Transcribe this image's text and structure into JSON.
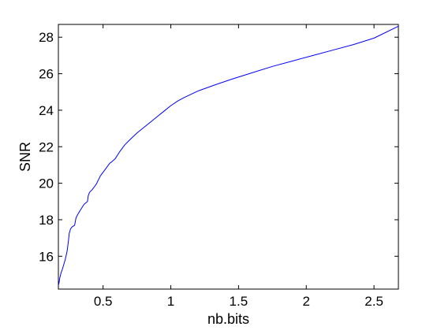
{
  "chart_data": {
    "type": "line",
    "title": "",
    "xlabel": "nb.bits",
    "ylabel": "SNR",
    "xlim": [
      0.17,
      2.68
    ],
    "ylim": [
      14.2,
      28.7
    ],
    "grid": false,
    "legend": "none",
    "xticks": [
      0.5,
      1,
      1.5,
      2,
      2.5
    ],
    "xtick_labels": [
      "0.5",
      "1",
      "1.5",
      "2",
      "2.5"
    ],
    "yticks": [
      16,
      18,
      20,
      22,
      24,
      26,
      28
    ],
    "ytick_labels": [
      "16",
      "18",
      "20",
      "22",
      "24",
      "26",
      "28"
    ],
    "series": [
      {
        "color": "#0000ff",
        "x": [
          0.17,
          0.175,
          0.18,
          0.19,
          0.2,
          0.22,
          0.235,
          0.245,
          0.25,
          0.26,
          0.27,
          0.28,
          0.29,
          0.3,
          0.31,
          0.33,
          0.36,
          0.385,
          0.39,
          0.4,
          0.42,
          0.45,
          0.48,
          0.52,
          0.55,
          0.56,
          0.59,
          0.62,
          0.66,
          0.7,
          0.75,
          0.8,
          0.85,
          0.9,
          0.95,
          1.0,
          1.05,
          1.1,
          1.2,
          1.33,
          1.45,
          1.6,
          1.75,
          1.9,
          2.05,
          2.2,
          2.35,
          2.5,
          2.68
        ],
        "y": [
          14.4,
          14.55,
          14.8,
          15.1,
          15.3,
          15.8,
          16.3,
          16.9,
          17.25,
          17.5,
          17.6,
          17.65,
          17.7,
          18.1,
          18.25,
          18.5,
          18.85,
          19.0,
          19.3,
          19.5,
          19.65,
          19.95,
          20.4,
          20.8,
          21.1,
          21.15,
          21.35,
          21.7,
          22.1,
          22.4,
          22.75,
          23.05,
          23.35,
          23.65,
          23.95,
          24.25,
          24.5,
          24.7,
          25.05,
          25.4,
          25.7,
          26.05,
          26.4,
          26.7,
          27.0,
          27.3,
          27.6,
          27.95,
          28.6
        ]
      }
    ]
  }
}
